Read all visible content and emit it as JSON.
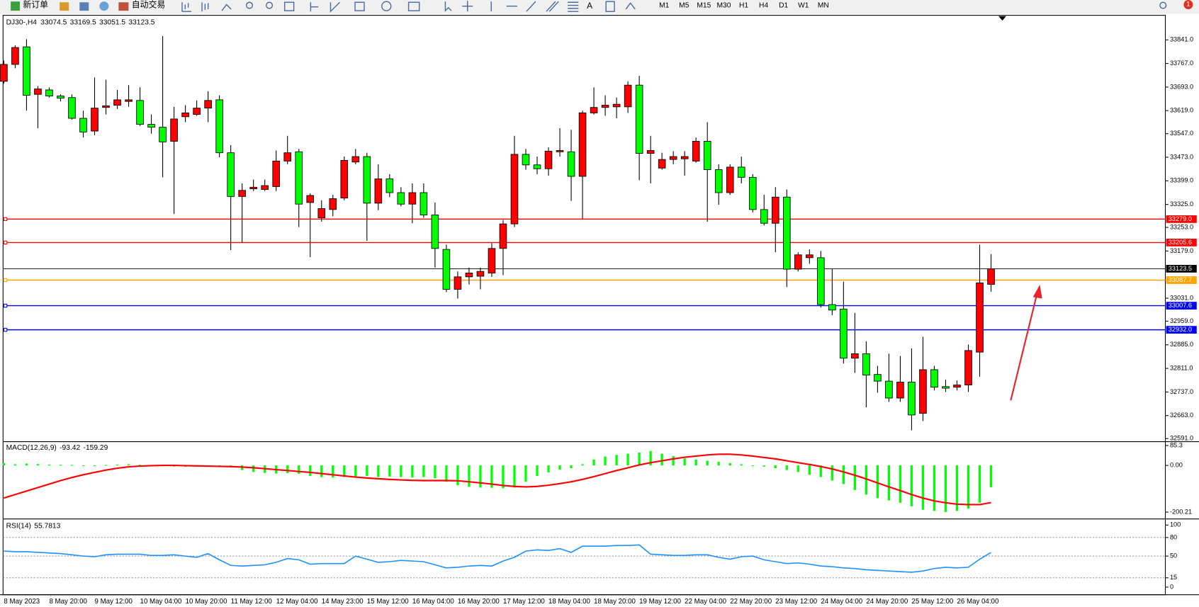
{
  "toolbar": {
    "new_order": "新订单",
    "auto_trading": "自动交易",
    "text_tool": "A",
    "timeframes": [
      "M1",
      "M5",
      "M15",
      "M30",
      "H1",
      "H4",
      "D1",
      "W1",
      "MN"
    ],
    "alerts": 1
  },
  "chart_data": [
    {
      "type": "candlestick",
      "title": "DJ30-,H4",
      "categories": [
        "8 May 2023",
        null,
        null,
        null,
        "8 May 20:00",
        null,
        null,
        null,
        "9 May 12:00",
        null,
        null,
        null,
        "10 May 04:00",
        null,
        null,
        null,
        "10 May 20:00",
        null,
        null,
        null,
        "11 May 12:00",
        null,
        null,
        null,
        "12 May 04:00",
        null,
        null,
        null,
        "14 May 23:00",
        null,
        null,
        null,
        "15 May 12:00",
        null,
        null,
        null,
        "16 May 04:00",
        null,
        null,
        null,
        "16 May 20:00",
        null,
        null,
        null,
        "17 May 12:00",
        null,
        null,
        null,
        "18 May 04:00",
        null,
        null,
        null,
        "18 May 20:00",
        null,
        null,
        null,
        "19 May 12:00",
        null,
        null,
        null,
        "22 May 04:00",
        null,
        null,
        null,
        "22 May 20:00",
        null,
        null,
        null,
        "23 May 12:00",
        null,
        null,
        null,
        "24 May 04:00",
        null,
        null,
        null,
        "24 May 20:00",
        null,
        null,
        null,
        "25 May 12:00",
        null,
        null,
        null,
        "26 May 04:00",
        null,
        null,
        null
      ],
      "open": [
        33711,
        33764,
        33819,
        33670,
        33684,
        33665,
        33660,
        33595,
        33555,
        33629,
        33636,
        33648,
        33651,
        33576,
        33567,
        33523,
        33600,
        33607,
        33627,
        33653,
        33487,
        33350,
        33374,
        33372,
        33381,
        33461,
        33490,
        33331,
        33283,
        33309,
        33345,
        33458,
        33475,
        33329,
        33405,
        33362,
        33326,
        33362,
        33292,
        33184,
        33059,
        33098,
        33100,
        33110,
        33187,
        33264,
        33482,
        33449,
        33437,
        33490,
        33490,
        33413,
        33612,
        33629,
        33631,
        33631,
        33699,
        33485,
        33439,
        33466,
        33468,
        33461,
        33523,
        33434,
        33362,
        33442,
        33410,
        33309,
        33266,
        33348,
        33122,
        33158,
        33158,
        33011,
        32997,
        32843,
        32857,
        32792,
        32771,
        32718,
        32768,
        32670,
        32807,
        32754,
        32752,
        32759,
        32862,
        33074.5
      ],
      "high": [
        33776,
        33824,
        33843,
        33696,
        33692,
        33670,
        33670,
        33619,
        33723,
        33716,
        33684,
        33699,
        33692,
        33607,
        33853,
        33631,
        33636,
        33651,
        33680,
        33667,
        33511,
        33391,
        33403,
        33403,
        33494,
        33540,
        33499,
        33360,
        33338,
        33355,
        33475,
        33499,
        33487,
        33451,
        33420,
        33379,
        33391,
        33391,
        33331,
        33199,
        33115,
        33127,
        33127,
        33204,
        33276,
        33540,
        33499,
        33475,
        33504,
        33564,
        33559,
        33619,
        33692,
        33667,
        33660,
        33711,
        33728,
        33540,
        33487,
        33492,
        33492,
        33535,
        33583,
        33451,
        33451,
        33475,
        33420,
        33355,
        33379,
        33372,
        33175,
        33184,
        33179,
        33122,
        33083,
        32985,
        32896,
        32819,
        32857,
        32850,
        32874,
        32910,
        32819,
        32776,
        32773,
        32886,
        33199,
        33169.5
      ],
      "low": [
        33704,
        33752,
        33619,
        33564,
        33660,
        33648,
        33591,
        33535,
        33542,
        33607,
        33624,
        33631,
        33571,
        33547,
        33410,
        33295,
        33583,
        33603,
        33583,
        33473,
        33182,
        33204,
        33367,
        33367,
        33367,
        33451,
        33254,
        33160,
        33271,
        33288,
        33338,
        33451,
        33211,
        33307,
        33348,
        33319,
        33266,
        33283,
        33127,
        33050,
        33030,
        33074,
        33059,
        33098,
        33103,
        33254,
        33434,
        33420,
        33415,
        33475,
        33336,
        33278,
        33607,
        33603,
        33595,
        33612,
        33401,
        33391,
        33434,
        33451,
        33415,
        33456,
        33271,
        33324,
        33355,
        33391,
        33300,
        33259,
        33175,
        33066,
        33115,
        33139,
        33002,
        32978,
        32826,
        32797,
        32689,
        32735,
        32706,
        32706,
        32617,
        32646,
        32742,
        32737,
        32742,
        32737,
        32785,
        33051.5
      ],
      "close": [
        33764,
        33817,
        33667,
        33687,
        33665,
        33658,
        33595,
        33552,
        33627,
        33634,
        33653,
        33653,
        33576,
        33567,
        33521,
        33593,
        33612,
        33627,
        33651,
        33487,
        33350,
        33369,
        33379,
        33384,
        33461,
        33487,
        33326,
        33353,
        33312,
        33343,
        33463,
        33475,
        33329,
        33405,
        33362,
        33326,
        33362,
        33292,
        33187,
        33059,
        33098,
        33110,
        33115,
        33187,
        33264,
        33482,
        33449,
        33437,
        33492,
        33494,
        33413,
        33612,
        33629,
        33636,
        33639,
        33699,
        33485,
        33494,
        33466,
        33475,
        33475,
        33523,
        33434,
        33362,
        33442,
        33410,
        33309,
        33266,
        33348,
        33122,
        33167,
        33167,
        33011,
        32994,
        32843,
        32857,
        32790,
        32771,
        32718,
        32768,
        32665,
        32807,
        32752,
        32749,
        32759,
        32867,
        33079,
        33123.5
      ],
      "up_color": "#ff0000",
      "down_color": "#00ff00",
      "ylim": [
        32583.7,
        33915.5
      ],
      "yticks": [
        {
          "value": 33841,
          "label": "33841.0"
        },
        {
          "value": 33767,
          "label": "33767.0"
        },
        {
          "value": 33693,
          "label": "33693.0"
        },
        {
          "value": 33619,
          "label": "33619.0"
        },
        {
          "value": 33547,
          "label": "33547.0"
        },
        {
          "value": 33473,
          "label": "33473.0"
        },
        {
          "value": 33399,
          "label": "33399.0"
        },
        {
          "value": 33325,
          "label": "33325.0"
        },
        {
          "value": 33253,
          "label": "33253.0"
        },
        {
          "value": 33179,
          "label": "33179.0"
        },
        {
          "value": 33031,
          "label": "33031.0"
        },
        {
          "value": 32959,
          "label": "32959.0"
        },
        {
          "value": 32885,
          "label": "32885.0"
        },
        {
          "value": 32811,
          "label": "32811.0"
        },
        {
          "value": 32737,
          "label": "32737.0"
        },
        {
          "value": 32663,
          "label": "32663.0"
        },
        {
          "value": 32591,
          "label": "32591.0"
        }
      ],
      "levels": [
        {
          "value": 33279,
          "label": "33279.0",
          "color": "#ff0000"
        },
        {
          "value": 33205.6,
          "label": "33205.6",
          "color": "#ff0000"
        },
        {
          "value": 33087.7,
          "label": "33087.7",
          "color": "#ffa500"
        },
        {
          "value": 33007.6,
          "label": "33007.6",
          "color": "#0000ff"
        },
        {
          "value": 32932,
          "label": "32932.0",
          "color": "#0000ff"
        }
      ],
      "bid_color": "#000000"
    },
    {
      "type": "macd",
      "title": "MACD(12,26,9)",
      "series": [
        {
          "color": "#00ff00",
          "values": [
            10,
            5,
            8,
            6,
            4,
            3,
            2,
            0,
            -2,
            2,
            4,
            5,
            3,
            2,
            -1,
            -5,
            -6,
            -4,
            -2,
            -5,
            -8,
            -20,
            -28,
            -32,
            -35,
            -33,
            -36,
            -45,
            -50,
            -52,
            -50,
            -48,
            -45,
            -50,
            -48,
            -50,
            -52,
            -50,
            -55,
            -70,
            -85,
            -92,
            -95,
            -96,
            -98,
            -95,
            -70,
            -45,
            -30,
            -18,
            -12,
            5,
            25,
            38,
            45,
            50,
            55,
            62,
            50,
            40,
            30,
            25,
            20,
            15,
            10,
            5,
            0,
            -5,
            -12,
            -20,
            -28,
            -40,
            -50,
            -65,
            -80,
            -105,
            -125,
            -140,
            -150,
            -160,
            -175,
            -190,
            -195,
            -200,
            -195,
            -185,
            -160,
            -93.42
          ]
        },
        {
          "color": "#ff0000",
          "values": [
            -140,
            -125,
            -110,
            -95,
            -80,
            -65,
            -52,
            -40,
            -30,
            -20,
            -12,
            -6,
            -3,
            -1,
            0,
            0,
            -1,
            -2,
            -3,
            -4,
            -5,
            -7,
            -10,
            -14,
            -18,
            -22,
            -26,
            -30,
            -35,
            -40,
            -45,
            -50,
            -54,
            -57,
            -60,
            -62,
            -64,
            -65,
            -65,
            -65,
            -66,
            -70,
            -75,
            -80,
            -86,
            -90,
            -92,
            -90,
            -85,
            -78,
            -70,
            -60,
            -48,
            -35,
            -22,
            -10,
            2,
            12,
            20,
            28,
            35,
            40,
            45,
            48,
            48,
            45,
            40,
            34,
            28,
            20,
            12,
            4,
            -5,
            -15,
            -28,
            -42,
            -58,
            -75,
            -92,
            -108,
            -125,
            -140,
            -152,
            -160,
            -166,
            -168,
            -168,
            -159.29
          ]
        }
      ],
      "ylim": [
        -223,
        98.5
      ],
      "yticks": [
        85.3,
        {
          "value": 0,
          "label": "0.00"
        },
        -200.21
      ]
    },
    {
      "type": "rsi",
      "title": "RSI(14)",
      "series": [
        {
          "color": "#1e90ff",
          "values": [
            58,
            57,
            57,
            56,
            55,
            54,
            52,
            50,
            49,
            52,
            53,
            53,
            53,
            51,
            51,
            52,
            50,
            48,
            54,
            44,
            35,
            34,
            35,
            36,
            40,
            46,
            44,
            37,
            38,
            38,
            38,
            50,
            45,
            40,
            41,
            43,
            42,
            41,
            36,
            31,
            32,
            34,
            35,
            34,
            42,
            48,
            58,
            60,
            59,
            62,
            56,
            66,
            66,
            66,
            67,
            67,
            68,
            53,
            52,
            51,
            51,
            52,
            52,
            48,
            45,
            49,
            50,
            44,
            41,
            38,
            39,
            37,
            34,
            33,
            31,
            30,
            28,
            27,
            26,
            25,
            24,
            26,
            30,
            32,
            31,
            32,
            45,
            55.7813
          ]
        }
      ],
      "ylim": [
        -11.1,
        108.6
      ],
      "yticks": [
        100,
        80,
        50,
        15,
        0
      ],
      "levels": [
        80,
        50,
        15
      ]
    }
  ]
}
